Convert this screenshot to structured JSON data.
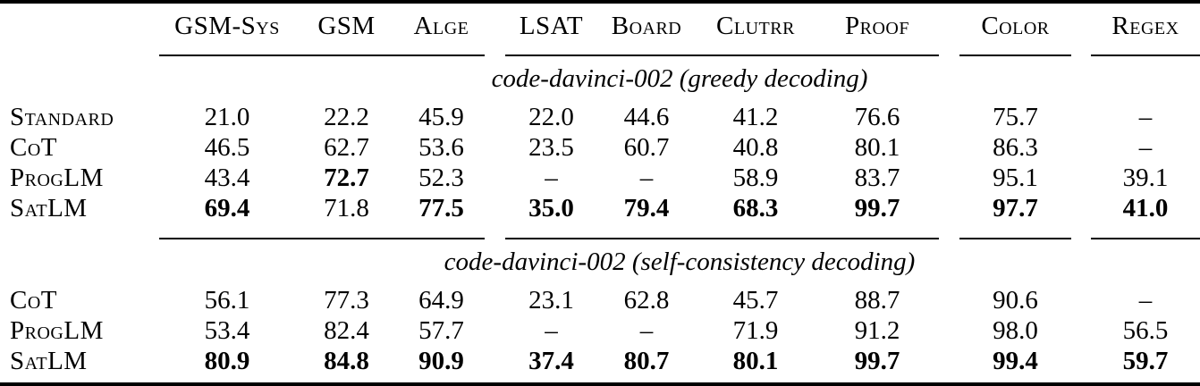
{
  "colors": {
    "background": "#ffffff",
    "text": "#000000",
    "rule": "#000000"
  },
  "table": {
    "header": {
      "row_label_header": "",
      "groups": [
        {
          "name": "group-gsm",
          "columns": [
            "GSM-Sys",
            "GSM",
            "Alge"
          ]
        },
        {
          "name": "group-logic",
          "columns": [
            "LSAT",
            "Board",
            "Clutrr",
            "Proof"
          ]
        },
        {
          "name": "group-color",
          "columns": [
            "Color"
          ]
        },
        {
          "name": "group-regex",
          "columns": [
            "Regex"
          ]
        }
      ]
    },
    "missing_value_glyph": "–",
    "sections": [
      {
        "title": "code-davinci-002 (greedy decoding)",
        "rows": [
          {
            "label": "Standard",
            "values": [
              "21.0",
              "22.2",
              "45.9",
              "22.0",
              "44.6",
              "41.2",
              "76.6",
              "75.7",
              "–"
            ],
            "bold": [
              false,
              false,
              false,
              false,
              false,
              false,
              false,
              false,
              false
            ]
          },
          {
            "label": "CoT",
            "values": [
              "46.5",
              "62.7",
              "53.6",
              "23.5",
              "60.7",
              "40.8",
              "80.1",
              "86.3",
              "–"
            ],
            "bold": [
              false,
              false,
              false,
              false,
              false,
              false,
              false,
              false,
              false
            ]
          },
          {
            "label": "ProgLM",
            "values": [
              "43.4",
              "72.7",
              "52.3",
              "–",
              "–",
              "58.9",
              "83.7",
              "95.1",
              "39.1"
            ],
            "bold": [
              false,
              true,
              false,
              false,
              false,
              false,
              false,
              false,
              false
            ]
          },
          {
            "label": "SatLM",
            "values": [
              "69.4",
              "71.8",
              "77.5",
              "35.0",
              "79.4",
              "68.3",
              "99.7",
              "97.7",
              "41.0"
            ],
            "bold": [
              true,
              false,
              true,
              true,
              true,
              true,
              true,
              true,
              true
            ]
          }
        ]
      },
      {
        "title": "code-davinci-002 (self-consistency decoding)",
        "rows": [
          {
            "label": "CoT",
            "values": [
              "56.1",
              "77.3",
              "64.9",
              "23.1",
              "62.8",
              "45.7",
              "88.7",
              "90.6",
              "–"
            ],
            "bold": [
              false,
              false,
              false,
              false,
              false,
              false,
              false,
              false,
              false
            ]
          },
          {
            "label": "ProgLM",
            "values": [
              "53.4",
              "82.4",
              "57.7",
              "–",
              "–",
              "71.9",
              "91.2",
              "98.0",
              "56.5"
            ],
            "bold": [
              false,
              false,
              false,
              false,
              false,
              false,
              false,
              false,
              false
            ]
          },
          {
            "label": "SatLM",
            "values": [
              "80.9",
              "84.8",
              "90.9",
              "37.4",
              "80.7",
              "80.1",
              "99.7",
              "99.4",
              "59.7"
            ],
            "bold": [
              true,
              true,
              true,
              true,
              true,
              true,
              true,
              true,
              true
            ]
          }
        ]
      }
    ]
  }
}
